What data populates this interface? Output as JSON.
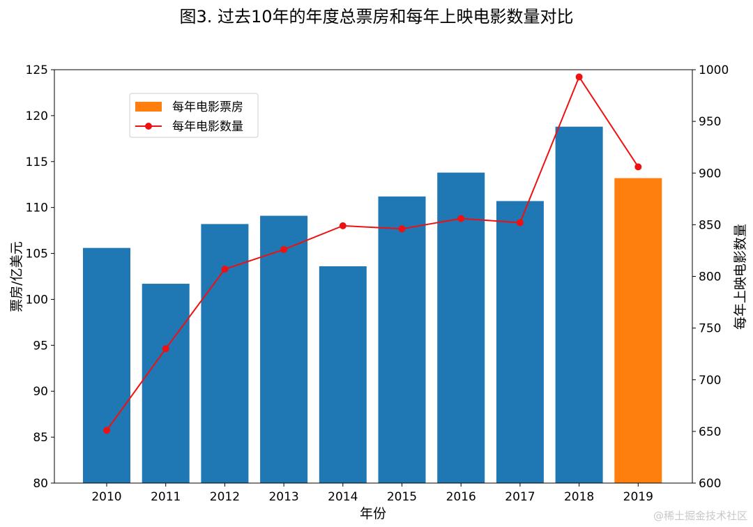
{
  "chart_data": {
    "type": "bar+line",
    "title": "图3. 过去10年的年度总票房和每年上映电影数量对比",
    "xlabel": "年份",
    "ylabel": "票房/亿美元",
    "ylabel_right": "每年上映电影数量",
    "categories": [
      "2010",
      "2011",
      "2012",
      "2013",
      "2014",
      "2015",
      "2016",
      "2017",
      "2018",
      "2019"
    ],
    "series": [
      {
        "name": "每年电影票房",
        "type": "bar",
        "axis": "left",
        "values": [
          105.6,
          101.7,
          108.2,
          109.1,
          103.6,
          111.2,
          113.8,
          110.7,
          118.8,
          113.2
        ],
        "color": "#1f77b4",
        "highlight_index": 9,
        "highlight_color": "#ff7f0e"
      },
      {
        "name": "每年电影数量",
        "type": "line",
        "axis": "right",
        "values": [
          651,
          730,
          807,
          826,
          849,
          846,
          856,
          852,
          993,
          906
        ],
        "color": "#ee1111"
      }
    ],
    "ylim": [
      80,
      125
    ],
    "yticks": [
      "80",
      "85",
      "90",
      "95",
      "100",
      "105",
      "110",
      "115",
      "120",
      "125"
    ],
    "ylim_right": [
      600,
      1000
    ],
    "yticks_right": [
      "600",
      "650",
      "700",
      "750",
      "800",
      "850",
      "900",
      "950",
      "1000"
    ],
    "legend_position": "upper-left",
    "grid": false
  },
  "watermark": "@稀土掘金技术社区"
}
